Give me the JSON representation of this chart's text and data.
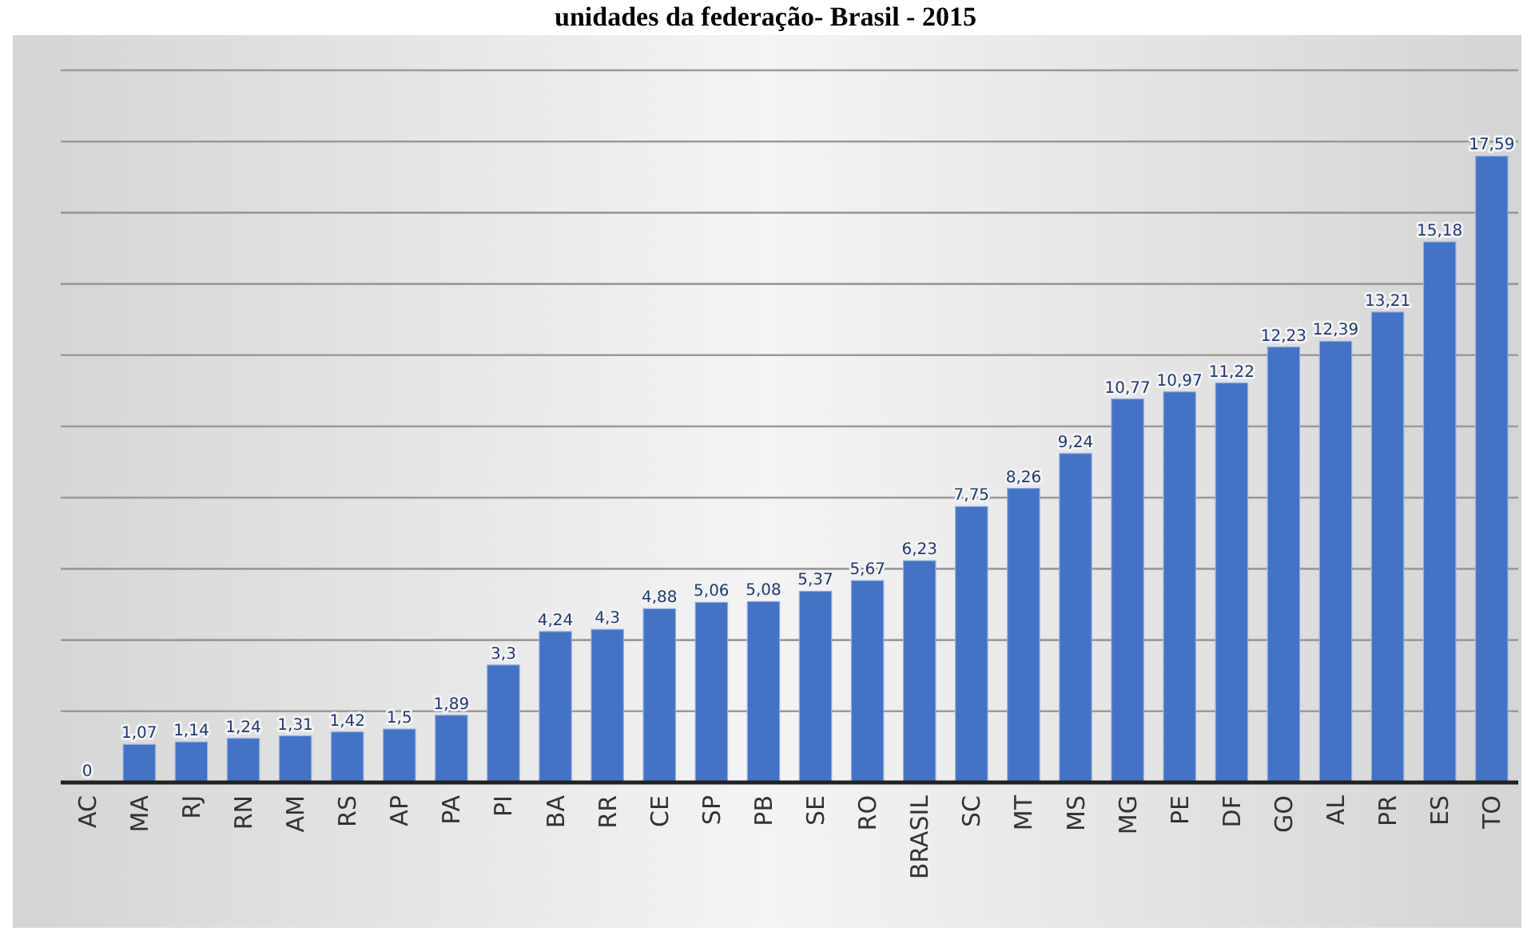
{
  "chart_data": {
    "type": "bar",
    "title": "unidades da federação- Brasil - 2015",
    "categories": [
      "AC",
      "MA",
      "RJ",
      "RN",
      "AM",
      "RS",
      "AP",
      "PA",
      "PI",
      "BA",
      "RR",
      "CE",
      "SP",
      "PB",
      "SE",
      "RO",
      "BRASIL",
      "SC",
      "MT",
      "MS",
      "MG",
      "PE",
      "DF",
      "GO",
      "AL",
      "PR",
      "ES",
      "TO"
    ],
    "values": [
      0,
      1.07,
      1.14,
      1.24,
      1.31,
      1.42,
      1.5,
      1.89,
      3.3,
      4.24,
      4.3,
      4.88,
      5.06,
      5.08,
      5.37,
      5.67,
      6.23,
      7.75,
      8.26,
      9.24,
      10.77,
      10.97,
      11.22,
      12.23,
      12.39,
      13.21,
      15.18,
      17.59
    ],
    "value_labels": [
      "0",
      "1,07",
      "1,14",
      "1,24",
      "1,31",
      "1,42",
      "1,5",
      "1,89",
      "3,3",
      "4,24",
      "4,3",
      "4,88",
      "5,06",
      "5,08",
      "5,37",
      "5,67",
      "6,23",
      "7,75",
      "8,26",
      "9,24",
      "10,77",
      "10,97",
      "11,22",
      "12,23",
      "12,39",
      "13,21",
      "15,18",
      "17,59"
    ],
    "color": "#4472c4",
    "ylim": [
      0,
      20
    ],
    "yticks": [
      {
        "value": 0,
        "label": null
      },
      {
        "value": 2,
        "label": null
      },
      {
        "value": 4,
        "label": null
      },
      {
        "value": 6,
        "label": null
      },
      {
        "value": 8,
        "label": null
      },
      {
        "value": 10,
        "label": null
      },
      {
        "value": 12,
        "label": null
      },
      {
        "value": 14,
        "label": null
      },
      {
        "value": 16,
        "label": null
      },
      {
        "value": 18,
        "label": null
      },
      {
        "value": 20,
        "label": null
      }
    ],
    "grid": "y",
    "tick_labels": "x"
  }
}
